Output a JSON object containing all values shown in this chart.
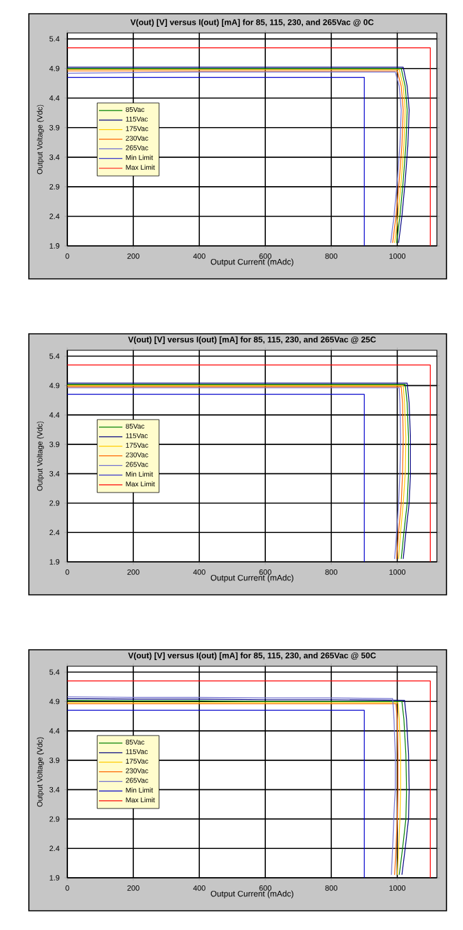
{
  "chart_data": [
    {
      "type": "line",
      "title": "V(out) [V] versus I(out) [mA] for 85, 115, 230, and 265Vac @ 0C",
      "xlabel": "Output Current (mAdc)",
      "ylabel": "Output Voltage (Vdc)",
      "xlim": [
        0,
        1120
      ],
      "ylim": [
        1.9,
        5.5
      ],
      "xticks": [
        0,
        200,
        400,
        600,
        800,
        1000
      ],
      "yticks": [
        1.9,
        2.4,
        2.9,
        3.4,
        3.9,
        4.4,
        4.9,
        5.4
      ],
      "grid": true,
      "legend": "left",
      "series": [
        {
          "name": "85Vac",
          "color": "#008000",
          "x": [
            0,
            200,
            400,
            600,
            800,
            1012,
            1024,
            1030,
            1026,
            1018,
            1008,
            998
          ],
          "values": [
            4.9,
            4.9,
            4.9,
            4.9,
            4.9,
            4.9,
            4.6,
            4.2,
            3.6,
            3.0,
            2.4,
            1.95
          ]
        },
        {
          "name": "115Vac",
          "color": "#000080",
          "x": [
            0,
            200,
            400,
            600,
            800,
            1018,
            1030,
            1036,
            1032,
            1024,
            1014,
            1004
          ],
          "values": [
            4.92,
            4.92,
            4.92,
            4.92,
            4.92,
            4.92,
            4.6,
            4.2,
            3.6,
            3.0,
            2.4,
            1.95
          ]
        },
        {
          "name": "175Vac",
          "color": "#ffcc00",
          "x": [
            0,
            200,
            400,
            600,
            800,
            1006,
            1018,
            1024,
            1020,
            1012,
            1002,
            992
          ],
          "values": [
            4.88,
            4.88,
            4.88,
            4.88,
            4.88,
            4.88,
            4.6,
            4.2,
            3.6,
            3.0,
            2.4,
            1.95
          ]
        },
        {
          "name": "230Vac",
          "color": "#ff6600",
          "x": [
            0,
            200,
            400,
            600,
            800,
            1000,
            1012,
            1018,
            1014,
            1006,
            996,
            986
          ],
          "values": [
            4.86,
            4.86,
            4.86,
            4.86,
            4.86,
            4.86,
            4.6,
            4.2,
            3.6,
            3.0,
            2.4,
            1.95
          ]
        },
        {
          "name": "265Vac",
          "color": "#7070d0",
          "x": [
            0,
            200,
            400,
            600,
            800,
            994,
            1006,
            1012,
            1008,
            1000,
            990,
            980
          ],
          "values": [
            4.82,
            4.83,
            4.84,
            4.84,
            4.84,
            4.84,
            4.6,
            4.2,
            3.6,
            3.0,
            2.4,
            1.95
          ]
        },
        {
          "name": "Min Limit",
          "color": "#0000cc",
          "x": [
            0,
            900,
            900
          ],
          "values": [
            4.75,
            4.75,
            1.9
          ]
        },
        {
          "name": "Max Limit",
          "color": "#ff0000",
          "x": [
            0,
            1100,
            1100
          ],
          "values": [
            5.25,
            5.25,
            1.9
          ]
        }
      ]
    },
    {
      "type": "line",
      "title": "V(out) [V] versus I(out) [mA] for 85, 115, 230, and 265Vac @ 25C",
      "xlabel": "Output Current (mAdc)",
      "ylabel": "Output Voltage (Vdc)",
      "xlim": [
        0,
        1120
      ],
      "ylim": [
        1.9,
        5.5
      ],
      "xticks": [
        0,
        200,
        400,
        600,
        800,
        1000
      ],
      "yticks": [
        1.9,
        2.4,
        2.9,
        3.4,
        3.9,
        4.4,
        4.9,
        5.4
      ],
      "grid": true,
      "legend": "left",
      "series": [
        {
          "name": "85Vac",
          "color": "#008000",
          "x": [
            0,
            200,
            400,
            600,
            800,
            1024,
            1030,
            1034,
            1034,
            1030,
            1020,
            1012
          ],
          "values": [
            4.92,
            4.92,
            4.92,
            4.92,
            4.92,
            4.92,
            4.6,
            4.0,
            3.4,
            2.9,
            2.4,
            1.95
          ]
        },
        {
          "name": "115Vac",
          "color": "#000080",
          "x": [
            0,
            200,
            400,
            600,
            800,
            1030,
            1036,
            1040,
            1040,
            1036,
            1026,
            1018
          ],
          "values": [
            4.94,
            4.94,
            4.94,
            4.94,
            4.94,
            4.94,
            4.6,
            4.0,
            3.4,
            2.9,
            2.4,
            1.95
          ]
        },
        {
          "name": "175Vac",
          "color": "#ffcc00",
          "x": [
            0,
            200,
            400,
            600,
            800,
            1018,
            1022,
            1026,
            1024,
            1018,
            1010,
            1004
          ],
          "values": [
            4.9,
            4.9,
            4.9,
            4.9,
            4.9,
            4.9,
            4.6,
            4.0,
            3.4,
            2.9,
            2.4,
            1.95
          ]
        },
        {
          "name": "230Vac",
          "color": "#ff6600",
          "x": [
            0,
            200,
            400,
            600,
            800,
            1012,
            1016,
            1018,
            1016,
            1012,
            1004,
            998
          ],
          "values": [
            4.88,
            4.88,
            4.88,
            4.88,
            4.88,
            4.88,
            4.6,
            4.0,
            3.4,
            2.9,
            2.4,
            1.95
          ]
        },
        {
          "name": "265Vac",
          "color": "#7070d0",
          "x": [
            0,
            200,
            400,
            600,
            800,
            1006,
            1008,
            1010,
            1008,
            1004,
            998,
            992
          ],
          "values": [
            4.86,
            4.86,
            4.86,
            4.86,
            4.86,
            4.86,
            4.6,
            4.0,
            3.4,
            2.9,
            2.4,
            1.95
          ]
        },
        {
          "name": "Min Limit",
          "color": "#0000cc",
          "x": [
            0,
            900,
            900
          ],
          "values": [
            4.75,
            4.75,
            1.9
          ]
        },
        {
          "name": "Max Limit",
          "color": "#ff0000",
          "x": [
            0,
            1100,
            1100
          ],
          "values": [
            5.25,
            5.25,
            1.9
          ]
        }
      ]
    },
    {
      "type": "line",
      "title": "V(out) [V] versus I(out) [mA] for 85, 115, 230, and 265Vac @ 50C",
      "xlabel": "Output Current (mAdc)",
      "ylabel": "Output Voltage (Vdc)",
      "xlim": [
        0,
        1120
      ],
      "ylim": [
        1.9,
        5.5
      ],
      "xticks": [
        0,
        200,
        400,
        600,
        800,
        1000
      ],
      "yticks": [
        1.9,
        2.4,
        2.9,
        3.4,
        3.9,
        4.4,
        4.9,
        5.4
      ],
      "grid": true,
      "legend": "left",
      "series": [
        {
          "name": "85Vac",
          "color": "#008000",
          "x": [
            0,
            200,
            400,
            600,
            800,
            1014,
            1020,
            1026,
            1028,
            1026,
            1016,
            1006
          ],
          "values": [
            4.92,
            4.91,
            4.91,
            4.9,
            4.9,
            4.9,
            4.6,
            4.0,
            3.4,
            2.9,
            2.4,
            1.95
          ]
        },
        {
          "name": "115Vac",
          "color": "#000080",
          "x": [
            0,
            200,
            400,
            600,
            800,
            1022,
            1028,
            1034,
            1036,
            1034,
            1024,
            1014
          ],
          "values": [
            4.95,
            4.94,
            4.94,
            4.93,
            4.93,
            4.92,
            4.6,
            4.0,
            3.4,
            2.9,
            2.4,
            1.95
          ]
        },
        {
          "name": "175Vac",
          "color": "#ffcc00",
          "x": [
            0,
            200,
            400,
            600,
            800,
            1002,
            1006,
            1010,
            1010,
            1008,
            1004,
            1000
          ],
          "values": [
            4.88,
            4.88,
            4.88,
            4.88,
            4.88,
            4.88,
            4.6,
            4.0,
            3.4,
            2.9,
            2.4,
            1.95
          ]
        },
        {
          "name": "230Vac",
          "color": "#ff6600",
          "x": [
            0,
            200,
            400,
            600,
            800,
            996,
            1000,
            1002,
            1002,
            1000,
            996,
            992
          ],
          "values": [
            4.86,
            4.86,
            4.86,
            4.86,
            4.86,
            4.86,
            4.6,
            4.0,
            3.4,
            2.9,
            2.4,
            1.95
          ]
        },
        {
          "name": "265Vac",
          "color": "#7070d0",
          "x": [
            0,
            200,
            400,
            600,
            800,
            986,
            990,
            994,
            994,
            990,
            986,
            982
          ],
          "values": [
            4.98,
            4.97,
            4.97,
            4.96,
            4.96,
            4.95,
            4.6,
            4.0,
            3.4,
            3.0,
            2.4,
            1.95
          ]
        },
        {
          "name": "Min Limit",
          "color": "#0000cc",
          "x": [
            0,
            900,
            900
          ],
          "values": [
            4.75,
            4.75,
            1.9
          ]
        },
        {
          "name": "Max Limit",
          "color": "#ff0000",
          "x": [
            0,
            1100,
            1100
          ],
          "values": [
            5.25,
            5.25,
            1.9
          ]
        }
      ]
    }
  ]
}
